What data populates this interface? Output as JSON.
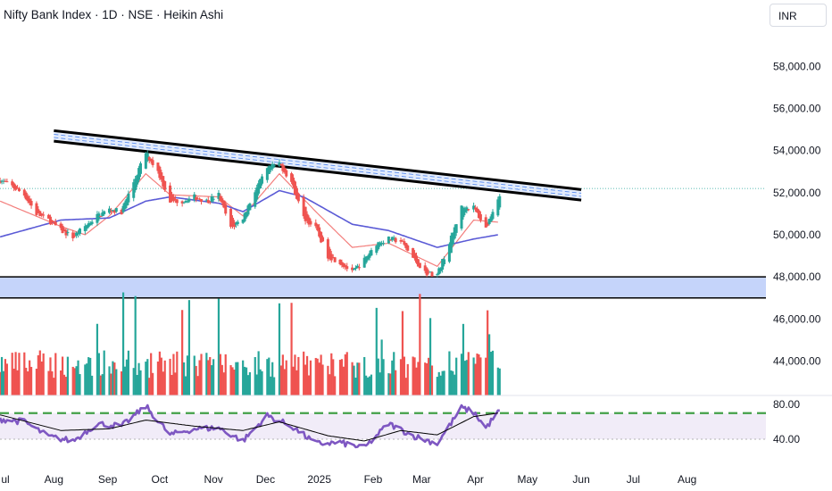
{
  "header": {
    "title": "Nifty Bank Index · 1D · NSE · Heikin Ashi",
    "currency": "INR"
  },
  "colors": {
    "up": "#26a69a",
    "down": "#ef5350",
    "ema_fast": "#ef5350",
    "ema_slow": "#5b5bd6",
    "trendline": "#000000",
    "support_zone": "#c5d4fa",
    "rsi": "#7e57c2",
    "rsi_signal": "#000000",
    "rsi_level": "#43a047"
  },
  "chart_data": {
    "type": "candlestick",
    "style": "Heikin Ashi",
    "symbol": "Nifty Bank Index",
    "interval": "1D",
    "exchange": "NSE",
    "y_ticks": [
      "58,000.00",
      "56,000.00",
      "54,000.00",
      "52,000.00",
      "50,000.00",
      "48,000.00",
      "46,000.00",
      "44,000.00"
    ],
    "x_ticks": [
      "ul",
      "Aug",
      "Sep",
      "Oct",
      "Nov",
      "Dec",
      "2025",
      "Feb",
      "Mar",
      "Apr",
      "May",
      "Jun",
      "Jul",
      "Aug"
    ],
    "x_tick_date": [
      "2024-07-01",
      "2024-08-01",
      "2024-09-01",
      "2024-10-01",
      "2024-11-01",
      "2024-12-01",
      "2025-01-01",
      "2025-02-01",
      "2025-03-01",
      "2025-04-01",
      "2025-05-01",
      "2025-06-01",
      "2025-07-01",
      "2025-08-01"
    ],
    "ylim": [
      43000,
      59500
    ],
    "price_anchors": [
      [
        "2024-07-01",
        52600
      ],
      [
        "2024-07-08",
        52300
      ],
      [
        "2024-07-15",
        51900
      ],
      [
        "2024-07-22",
        51000
      ],
      [
        "2024-07-29",
        50700
      ],
      [
        "2024-08-05",
        50200
      ],
      [
        "2024-08-12",
        49900
      ],
      [
        "2024-08-19",
        50400
      ],
      [
        "2024-08-26",
        50900
      ],
      [
        "2024-09-02",
        51200
      ],
      [
        "2024-09-09",
        51100
      ],
      [
        "2024-09-16",
        52500
      ],
      [
        "2024-09-23",
        53900
      ],
      [
        "2024-09-30",
        53000
      ],
      [
        "2024-10-07",
        51600
      ],
      [
        "2024-10-14",
        51600
      ],
      [
        "2024-10-21",
        51800
      ],
      [
        "2024-10-28",
        51600
      ],
      [
        "2024-11-04",
        51900
      ],
      [
        "2024-11-11",
        50300
      ],
      [
        "2024-11-18",
        50800
      ],
      [
        "2024-11-25",
        52100
      ],
      [
        "2024-12-02",
        53100
      ],
      [
        "2024-12-09",
        53400
      ],
      [
        "2024-12-16",
        52500
      ],
      [
        "2024-12-23",
        50800
      ],
      [
        "2024-12-30",
        50300
      ],
      [
        "2025-01-06",
        49000
      ],
      [
        "2025-01-13",
        48700
      ],
      [
        "2025-01-20",
        48200
      ],
      [
        "2025-01-27",
        48800
      ],
      [
        "2025-02-03",
        49600
      ],
      [
        "2025-02-10",
        49800
      ],
      [
        "2025-02-17",
        49700
      ],
      [
        "2025-02-24",
        48900
      ],
      [
        "2025-03-03",
        48200
      ],
      [
        "2025-03-10",
        48100
      ],
      [
        "2025-03-17",
        49600
      ],
      [
        "2025-03-24",
        51300
      ],
      [
        "2025-03-31",
        51300
      ],
      [
        "2025-04-07",
        50300
      ],
      [
        "2025-04-14",
        51800
      ]
    ],
    "ema_fast_anchors": [
      [
        "2024-07-01",
        51600
      ],
      [
        "2024-08-05",
        50400
      ],
      [
        "2024-08-19",
        50000
      ],
      [
        "2024-09-02",
        50900
      ],
      [
        "2024-09-23",
        52900
      ],
      [
        "2024-10-07",
        51900
      ],
      [
        "2024-11-04",
        51800
      ],
      [
        "2024-11-18",
        50900
      ],
      [
        "2024-12-09",
        52900
      ],
      [
        "2024-12-30",
        51100
      ],
      [
        "2025-01-20",
        49400
      ],
      [
        "2025-02-10",
        49600
      ],
      [
        "2025-03-10",
        48500
      ],
      [
        "2025-03-31",
        50700
      ],
      [
        "2025-04-14",
        50600
      ]
    ],
    "ema_slow_anchors": [
      [
        "2024-07-01",
        49900
      ],
      [
        "2024-08-05",
        50700
      ],
      [
        "2024-09-02",
        50800
      ],
      [
        "2024-09-23",
        51600
      ],
      [
        "2024-10-07",
        51800
      ],
      [
        "2024-11-04",
        51500
      ],
      [
        "2024-11-18",
        51100
      ],
      [
        "2024-12-09",
        52100
      ],
      [
        "2024-12-23",
        51800
      ],
      [
        "2025-01-20",
        50500
      ],
      [
        "2025-02-10",
        50200
      ],
      [
        "2025-03-10",
        49400
      ],
      [
        "2025-03-31",
        49800
      ],
      [
        "2025-04-14",
        50000
      ]
    ],
    "trendline": {
      "start": [
        "2024-08-01",
        54700
      ],
      "end": [
        "2025-06-01",
        51900
      ],
      "channel_width": 500
    },
    "support_zone": [
      47000,
      48000
    ],
    "current_price_level": 52200,
    "volume_scale_max": 100,
    "rsi": {
      "ticks": [
        "80.00",
        "40.00"
      ],
      "ylim": [
        27,
        90
      ],
      "overbought_level": 70,
      "band": [
        40,
        70
      ],
      "anchors": [
        [
          "2024-07-01",
          63
        ],
        [
          "2024-07-15",
          60
        ],
        [
          "2024-07-29",
          43
        ],
        [
          "2024-08-12",
          38
        ],
        [
          "2024-08-26",
          58
        ],
        [
          "2024-09-09",
          55
        ],
        [
          "2024-09-23",
          78
        ],
        [
          "2024-10-07",
          45
        ],
        [
          "2024-10-21",
          52
        ],
        [
          "2024-11-04",
          53
        ],
        [
          "2024-11-18",
          38
        ],
        [
          "2024-12-02",
          67
        ],
        [
          "2024-12-16",
          55
        ],
        [
          "2024-12-30",
          35
        ],
        [
          "2025-01-13",
          36
        ],
        [
          "2025-01-27",
          30
        ],
        [
          "2025-02-10",
          58
        ],
        [
          "2025-02-24",
          44
        ],
        [
          "2025-03-10",
          35
        ],
        [
          "2025-03-24",
          76
        ],
        [
          "2025-03-31",
          71
        ],
        [
          "2025-04-07",
          53
        ],
        [
          "2025-04-14",
          71
        ]
      ],
      "signal_anchors": [
        [
          "2024-07-01",
          68
        ],
        [
          "2024-08-05",
          50
        ],
        [
          "2024-09-02",
          52
        ],
        [
          "2024-09-23",
          62
        ],
        [
          "2024-10-21",
          55
        ],
        [
          "2024-11-18",
          50
        ],
        [
          "2024-12-09",
          60
        ],
        [
          "2025-01-06",
          44
        ],
        [
          "2025-01-27",
          38
        ],
        [
          "2025-02-17",
          50
        ],
        [
          "2025-03-10",
          45
        ],
        [
          "2025-03-31",
          66
        ],
        [
          "2025-04-14",
          70
        ]
      ]
    }
  }
}
